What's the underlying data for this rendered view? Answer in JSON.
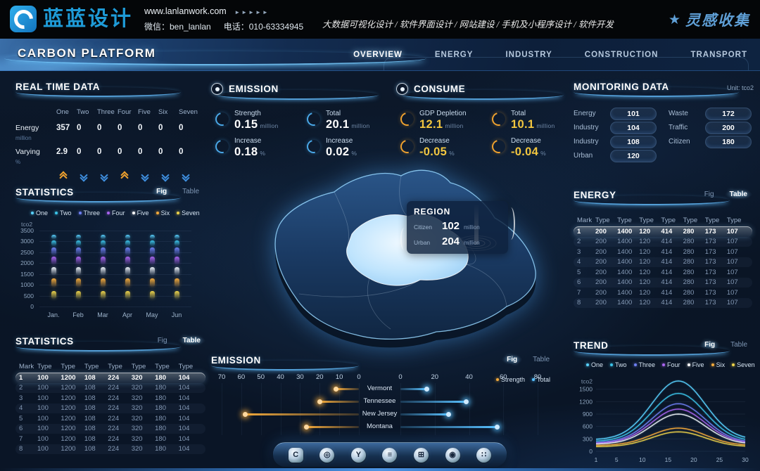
{
  "topbar": {
    "logo_text": "蓝蓝设计",
    "website": "www.lanlanwork.com",
    "website_arrows": "►►►►►",
    "wechat": "微信：ben_lanlan",
    "phone": "电话：010-63334945",
    "services": "大数据可视化设计 / 软件界面设计 / 网站建设 / 手机及小程序设计 / 软件开发",
    "collect_logo": "灵感收集",
    "collect_star": "★"
  },
  "header": {
    "title": "CARBON PLATFORM",
    "tabs": [
      {
        "label": "OVERVIEW",
        "active": true
      },
      {
        "label": "ENERGY",
        "active": false
      },
      {
        "label": "INDUSTRY",
        "active": false
      },
      {
        "label": "CONSTRUCTION",
        "active": false
      },
      {
        "label": "TRANSPORT",
        "active": false
      }
    ]
  },
  "real_time": {
    "title": "REAL TIME DATA",
    "columns": [
      "One",
      "Two",
      "Three",
      "Four",
      "Five",
      "Six",
      "Seven"
    ],
    "rows": [
      {
        "label": "Energy",
        "unit": "million",
        "values": [
          "357",
          "0",
          "0",
          "0",
          "0",
          "0",
          "0"
        ]
      },
      {
        "label": "Varying",
        "unit": "%",
        "values": [
          "2.9",
          "0",
          "0",
          "0",
          "0",
          "0",
          "0"
        ]
      }
    ],
    "trends": [
      "up",
      "down",
      "down",
      "up",
      "down",
      "down",
      "down"
    ]
  },
  "emission": {
    "title": "EMISSION",
    "metrics": [
      {
        "label": "Strength",
        "value": "0.15",
        "unit": "million"
      },
      {
        "label": "Total",
        "value": "20.1",
        "unit": "million"
      },
      {
        "label": "Increase",
        "value": "0.18",
        "unit": "%"
      },
      {
        "label": "Increase",
        "value": "0.02",
        "unit": "%"
      }
    ]
  },
  "consume": {
    "title": "CONSUME",
    "metrics": [
      {
        "label": "GDP Depletion",
        "value": "12.1",
        "unit": "million"
      },
      {
        "label": "Total",
        "value": "10.1",
        "unit": "million"
      },
      {
        "label": "Decrease",
        "value": "-0.05",
        "unit": "%"
      },
      {
        "label": "Decrease",
        "value": "-0.04",
        "unit": "%"
      }
    ]
  },
  "monitoring": {
    "title": "MONITORING DATA",
    "unit": "Unit: tco2",
    "left": [
      {
        "label": "Energy",
        "value": "101"
      },
      {
        "label": "Industry",
        "value": "104"
      },
      {
        "label": "Industry",
        "value": "108"
      },
      {
        "label": "Urban",
        "value": "120"
      }
    ],
    "right": [
      {
        "label": "Waste",
        "value": "172"
      },
      {
        "label": "Traffic",
        "value": "200"
      },
      {
        "label": "Citizen",
        "value": "180"
      }
    ]
  },
  "map": {
    "region": {
      "title": "REGION",
      "rows": [
        {
          "label": "Citizen",
          "value": "102",
          "unit": "million"
        },
        {
          "label": "Urban",
          "value": "204",
          "unit": "million"
        }
      ]
    }
  },
  "stats_fig": {
    "title": "STATISTICS",
    "toggle": {
      "options": [
        "Fig",
        "Table"
      ],
      "active": "fig"
    },
    "unit": "tco2",
    "legend": [
      {
        "name": "One",
        "color": "#58d2ff"
      },
      {
        "name": "Two",
        "color": "#3bc3e8"
      },
      {
        "name": "Three",
        "color": "#6e7ff2"
      },
      {
        "name": "Four",
        "color": "#a964ef"
      },
      {
        "name": "Five",
        "color": "#ffffff"
      },
      {
        "name": "Six",
        "color": "#f2a93b"
      },
      {
        "name": "Seven",
        "color": "#edd34a"
      }
    ],
    "y_ticks": [
      3500,
      3000,
      2500,
      2000,
      1500,
      1000,
      500,
      0
    ],
    "y_max": 3500,
    "months": [
      "Jan.",
      "Feb",
      "Mar",
      "Apr",
      "May",
      "Jun"
    ],
    "segments": [
      {
        "series": "Seven",
        "color": "#edd34a",
        "from": 360,
        "to": 700
      },
      {
        "series": "Six",
        "color": "#f2a93b",
        "from": 900,
        "to": 1300
      },
      {
        "series": "Five",
        "color": "#e9eff6",
        "from": 1450,
        "to": 1800
      },
      {
        "series": "Four",
        "color": "#a964ef",
        "from": 1950,
        "to": 2300
      },
      {
        "series": "Three",
        "color": "#6e7ff2",
        "from": 2380,
        "to": 2720
      },
      {
        "series": "Two",
        "color": "#3bc3e8",
        "from": 2780,
        "to": 3060
      },
      {
        "series": "One",
        "color": "#58d2ff",
        "from": 3100,
        "to": 3310
      }
    ]
  },
  "stats_table": {
    "title": "STATISTICS",
    "toggle": {
      "options": [
        "Fig",
        "Table"
      ],
      "active": "table"
    },
    "columns": [
      "Mark",
      "Type",
      "Type",
      "Type",
      "Type",
      "Type",
      "Type",
      "Type"
    ],
    "rows": [
      [
        "1",
        "100",
        "1200",
        "108",
        "224",
        "320",
        "180",
        "104"
      ],
      [
        "2",
        "100",
        "1200",
        "108",
        "224",
        "320",
        "180",
        "104"
      ],
      [
        "3",
        "100",
        "1200",
        "108",
        "224",
        "320",
        "180",
        "104"
      ],
      [
        "4",
        "100",
        "1200",
        "108",
        "224",
        "320",
        "180",
        "104"
      ],
      [
        "5",
        "100",
        "1200",
        "108",
        "224",
        "320",
        "180",
        "104"
      ],
      [
        "6",
        "100",
        "1200",
        "108",
        "224",
        "320",
        "180",
        "104"
      ],
      [
        "7",
        "100",
        "1200",
        "108",
        "224",
        "320",
        "180",
        "104"
      ],
      [
        "8",
        "100",
        "1200",
        "108",
        "224",
        "320",
        "180",
        "104"
      ]
    ]
  },
  "energy_table": {
    "title": "ENERGY",
    "toggle": {
      "options": [
        "Fig",
        "Table"
      ],
      "active": "table"
    },
    "columns": [
      "Mark",
      "Type",
      "Type",
      "Type",
      "Type",
      "Type",
      "Type",
      "Type"
    ],
    "rows": [
      [
        "1",
        "200",
        "1400",
        "120",
        "414",
        "280",
        "173",
        "107"
      ],
      [
        "2",
        "200",
        "1400",
        "120",
        "414",
        "280",
        "173",
        "107"
      ],
      [
        "3",
        "200",
        "1400",
        "120",
        "414",
        "280",
        "173",
        "107"
      ],
      [
        "4",
        "200",
        "1400",
        "120",
        "414",
        "280",
        "173",
        "107"
      ],
      [
        "5",
        "200",
        "1400",
        "120",
        "414",
        "280",
        "173",
        "107"
      ],
      [
        "6",
        "200",
        "1400",
        "120",
        "414",
        "280",
        "173",
        "107"
      ],
      [
        "7",
        "200",
        "1400",
        "120",
        "414",
        "280",
        "173",
        "107"
      ],
      [
        "8",
        "200",
        "1400",
        "120",
        "414",
        "280",
        "173",
        "107"
      ]
    ]
  },
  "trend": {
    "title": "TREND",
    "toggle": {
      "options": [
        "Fig",
        "Table"
      ],
      "active": "fig"
    },
    "unit": "tco2",
    "legend": [
      {
        "name": "One",
        "color": "#58d2ff"
      },
      {
        "name": "Two",
        "color": "#3bc3e8"
      },
      {
        "name": "Three",
        "color": "#6e7ff2"
      },
      {
        "name": "Four",
        "color": "#a964ef"
      },
      {
        "name": "Five",
        "color": "#ffffff"
      },
      {
        "name": "Six",
        "color": "#f2a93b"
      },
      {
        "name": "Seven",
        "color": "#edd34a"
      }
    ],
    "y_ticks": [
      1500,
      1200,
      900,
      600,
      300,
      0
    ],
    "y_max": 1800,
    "x_ticks": [
      1,
      5,
      10,
      15,
      20,
      25,
      30
    ],
    "x_range": [
      1,
      30
    ],
    "peak_center": 17,
    "peak_sigma": 5.2,
    "series": [
      {
        "name": "One",
        "color": "#58d2ff",
        "base": 280,
        "peak": 1700
      },
      {
        "name": "Two",
        "color": "#3bc3e8",
        "base": 240,
        "peak": 1400
      },
      {
        "name": "Three",
        "color": "#6e7ff2",
        "base": 210,
        "peak": 1150
      },
      {
        "name": "Four",
        "color": "#a964ef",
        "base": 190,
        "peak": 1020
      },
      {
        "name": "Five",
        "color": "#e9eff6",
        "base": 170,
        "peak": 900
      },
      {
        "name": "Six",
        "color": "#f2a93b",
        "base": 140,
        "peak": 560
      },
      {
        "name": "Seven",
        "color": "#edd34a",
        "base": 110,
        "peak": 470
      }
    ]
  },
  "tornado": {
    "title": "EMISSION",
    "toggle": {
      "options": [
        "Fig",
        "Table"
      ],
      "active": "fig"
    },
    "legend": [
      {
        "name": "Strength",
        "color": "#f2a93b"
      },
      {
        "name": "Total",
        "color": "#58c0ff"
      }
    ],
    "left_ticks": [
      70,
      60,
      50,
      40,
      30,
      20,
      10,
      0
    ],
    "right_ticks": [
      0,
      20,
      40,
      60,
      80
    ],
    "left_max": 70,
    "right_max": 80,
    "rows": [
      {
        "state": "Vermont",
        "strength": 12,
        "total": 15
      },
      {
        "state": "Tennessee",
        "strength": 20,
        "total": 38
      },
      {
        "state": "New Jersey",
        "strength": 58,
        "total": 28
      },
      {
        "state": "Montana",
        "strength": 27,
        "total": 56
      }
    ]
  },
  "dock": {
    "icons": [
      {
        "name": "hexagon-c-icon",
        "glyph": "C"
      },
      {
        "name": "aperture-icon",
        "glyph": "◎"
      },
      {
        "name": "y-badge-icon",
        "glyph": "Y"
      },
      {
        "name": "charging-station-icon",
        "glyph": "≡"
      },
      {
        "name": "factory-icon",
        "glyph": "⊞"
      },
      {
        "name": "nut-icon",
        "glyph": "◉"
      },
      {
        "name": "cluster-icon",
        "glyph": "∷"
      }
    ]
  }
}
